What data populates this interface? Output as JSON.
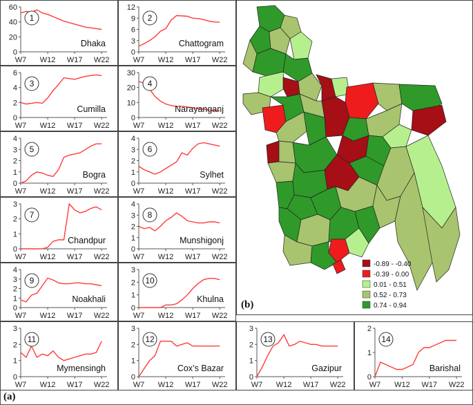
{
  "chart_data": {
    "type": "line",
    "panel_label": "(a)",
    "x_tick_labels": [
      "W7",
      "W12",
      "W17",
      "W22"
    ],
    "x_range": [
      7,
      23
    ],
    "panels": [
      {
        "id": 1,
        "number": "1",
        "name": "Dhaka",
        "yticks": [
          0,
          20,
          40,
          60
        ],
        "ylim": [
          0,
          60
        ],
        "x": [
          7,
          8,
          9,
          10,
          11,
          12,
          13,
          14,
          15,
          16,
          17,
          18,
          19,
          20,
          21,
          22
        ],
        "y": [
          52,
          54,
          53,
          56,
          52,
          50,
          47,
          44,
          41,
          39,
          37,
          35,
          33,
          32,
          31,
          30
        ]
      },
      {
        "id": 2,
        "number": "2",
        "name": "Chattogram",
        "yticks": [
          0,
          3,
          6,
          9,
          12
        ],
        "ylim": [
          0,
          12
        ],
        "x": [
          7,
          8,
          9,
          10,
          11,
          12,
          13,
          14,
          15,
          16,
          17,
          18,
          19,
          20,
          21,
          22
        ],
        "y": [
          1.5,
          2.2,
          3.0,
          4.0,
          5.5,
          6.2,
          8.5,
          9.7,
          9.6,
          9.5,
          9.0,
          8.9,
          8.6,
          8.2,
          8.0,
          7.9
        ]
      },
      {
        "id": 3,
        "number": "3",
        "name": "Cumilla",
        "yticks": [
          0,
          2,
          4,
          6
        ],
        "ylim": [
          0,
          6
        ],
        "x": [
          7,
          8,
          9,
          10,
          11,
          12,
          13,
          14,
          15,
          16,
          17,
          18,
          19,
          20,
          21,
          22
        ],
        "y": [
          2.0,
          1.8,
          1.9,
          2.0,
          1.9,
          2.6,
          3.6,
          4.4,
          5.3,
          5.2,
          5.1,
          5.3,
          5.5,
          5.6,
          5.7,
          5.6
        ]
      },
      {
        "id": 4,
        "number": "4",
        "name": "Narayanganj",
        "yticks": [
          0,
          10,
          20,
          30
        ],
        "ylim": [
          0,
          30
        ],
        "x": [
          7,
          8,
          9,
          10,
          11,
          12,
          13,
          14,
          15,
          16,
          17,
          18,
          19,
          20,
          21,
          22
        ],
        "y": [
          24,
          23,
          19,
          14,
          11,
          9,
          8,
          7.5,
          7.5,
          7,
          6.5,
          6,
          5.5,
          5,
          4.8,
          4.5
        ]
      },
      {
        "id": 5,
        "number": "5",
        "name": "Bogra",
        "yticks": [
          0,
          1,
          2,
          3,
          4
        ],
        "ylim": [
          0,
          4
        ],
        "x": [
          7,
          8,
          9,
          10,
          11,
          12,
          13,
          14,
          15,
          16,
          17,
          18,
          19,
          20,
          21,
          22
        ],
        "y": [
          0,
          0.2,
          0.7,
          1.0,
          0.9,
          0.7,
          0.6,
          1.2,
          2.3,
          2.5,
          2.6,
          2.7,
          3.0,
          3.3,
          3.5,
          3.5
        ]
      },
      {
        "id": 6,
        "number": "6",
        "name": "Sylhet",
        "yticks": [
          0,
          1,
          2,
          3,
          4
        ],
        "ylim": [
          0,
          4
        ],
        "x": [
          7,
          8,
          9,
          10,
          11,
          12,
          13,
          14,
          15,
          16,
          17,
          18,
          19,
          20,
          21,
          22
        ],
        "y": [
          1.5,
          1.2,
          1.0,
          0.8,
          1.0,
          1.3,
          1.6,
          1.9,
          2.7,
          2.5,
          3.1,
          3.5,
          3.6,
          3.5,
          3.4,
          3.3
        ]
      },
      {
        "id": 7,
        "number": "7",
        "name": "Chandpur",
        "yticks": [
          0,
          1,
          2,
          3
        ],
        "ylim": [
          0,
          3
        ],
        "x": [
          7,
          8,
          9,
          10,
          11,
          12,
          13,
          14,
          15,
          16,
          17,
          18,
          19,
          20,
          21,
          22
        ],
        "y": [
          0,
          0,
          0,
          0,
          0,
          0.1,
          0.5,
          0.6,
          0.6,
          3.0,
          2.6,
          2.4,
          2.5,
          2.7,
          2.8,
          2.6
        ]
      },
      {
        "id": 8,
        "number": "8",
        "name": "Munshigonj",
        "yticks": [
          0,
          1,
          2,
          3,
          4
        ],
        "ylim": [
          0,
          4
        ],
        "x": [
          7,
          8,
          9,
          10,
          11,
          12,
          13,
          14,
          15,
          16,
          17,
          18,
          19,
          20,
          21,
          22
        ],
        "y": [
          2.0,
          1.8,
          1.9,
          1.6,
          2.0,
          2.5,
          2.8,
          3.2,
          2.9,
          2.5,
          2.4,
          2.3,
          2.3,
          2.4,
          2.4,
          2.3
        ]
      },
      {
        "id": 9,
        "number": "9",
        "name": "Noakhali",
        "yticks": [
          0,
          1,
          2,
          3,
          4
        ],
        "ylim": [
          0,
          4
        ],
        "x": [
          7,
          8,
          9,
          10,
          11,
          12,
          13,
          14,
          15,
          16,
          17,
          18,
          19,
          20,
          21,
          22
        ],
        "y": [
          0.8,
          0.6,
          1.3,
          1.5,
          2.3,
          3.1,
          2.9,
          2.6,
          2.5,
          2.5,
          2.6,
          2.6,
          2.5,
          2.5,
          2.4,
          2.3
        ]
      },
      {
        "id": 10,
        "number": "10",
        "name": "Khulna",
        "yticks": [
          0,
          1,
          2,
          3
        ],
        "ylim": [
          0,
          3
        ],
        "x": [
          7,
          8,
          9,
          10,
          11,
          12,
          13,
          14,
          15,
          16,
          17,
          18,
          19,
          20,
          21,
          22
        ],
        "y": [
          0,
          0,
          0,
          0,
          0,
          0.2,
          0.2,
          0.3,
          0.6,
          1.0,
          1.5,
          1.9,
          2.2,
          2.3,
          2.3,
          2.2
        ]
      },
      {
        "id": 11,
        "number": "11",
        "name": "Mymensingh",
        "yticks": [
          0,
          1,
          2,
          3
        ],
        "ylim": [
          0,
          3
        ],
        "x": [
          7,
          8,
          9,
          10,
          11,
          12,
          13,
          14,
          15,
          16,
          17,
          18,
          19,
          20,
          21,
          22
        ],
        "y": [
          1.5,
          1.2,
          1.9,
          1.2,
          1.4,
          1.3,
          1.6,
          1.2,
          1.0,
          1.1,
          1.2,
          1.3,
          1.4,
          1.4,
          1.5,
          2.2
        ]
      },
      {
        "id": 12,
        "number": "12",
        "name": "Cox’s Bazar",
        "yticks": [
          0,
          1,
          2,
          3
        ],
        "ylim": [
          0,
          3
        ],
        "x": [
          7,
          8,
          9,
          10,
          11,
          12,
          13,
          14,
          15,
          16,
          17,
          18,
          19,
          20,
          21,
          22
        ],
        "y": [
          0,
          0.5,
          1.0,
          1.3,
          2.2,
          2.2,
          2.2,
          1.9,
          2.0,
          2.1,
          1.9,
          1.9,
          1.9,
          1.9,
          1.9,
          1.9
        ]
      },
      {
        "id": 13,
        "number": "13",
        "name": "Gazipur",
        "yticks": [
          0,
          1,
          2,
          3
        ],
        "ylim": [
          0,
          3
        ],
        "x": [
          7,
          8,
          9,
          10,
          11,
          12,
          13,
          14,
          15,
          16,
          17,
          18,
          19,
          20,
          21,
          22
        ],
        "y": [
          0,
          0.6,
          1.3,
          1.9,
          2.1,
          2.6,
          1.9,
          2.0,
          2.2,
          2.1,
          2.0,
          2.0,
          1.9,
          1.9,
          1.9,
          1.9
        ]
      },
      {
        "id": 14,
        "number": "14",
        "name": "Barishal",
        "yticks": [
          0,
          1,
          2
        ],
        "ylim": [
          0,
          2
        ],
        "x": [
          7,
          8,
          9,
          10,
          11,
          12,
          13,
          14,
          15,
          16,
          17,
          18,
          19,
          20,
          21,
          22
        ],
        "y": [
          0,
          0.6,
          0.5,
          0.4,
          0.3,
          0.3,
          0.4,
          0.5,
          1.0,
          1.2,
          1.2,
          1.3,
          1.4,
          1.5,
          1.5,
          1.5
        ]
      }
    ]
  },
  "map": {
    "panel_label": "(b)",
    "legend": [
      {
        "label": "-0.89 - -0.40",
        "color": "#a50f15"
      },
      {
        "label": "-0.39 - 0.00",
        "color": "#ee1c1c"
      },
      {
        "label": "0.01 - 0.51",
        "color": "#b6f08e"
      },
      {
        "label": "0.52 - 0.73",
        "color": "#a8c46e"
      },
      {
        "label": "0.74 - 0.94",
        "color": "#2f9a2a"
      }
    ]
  }
}
